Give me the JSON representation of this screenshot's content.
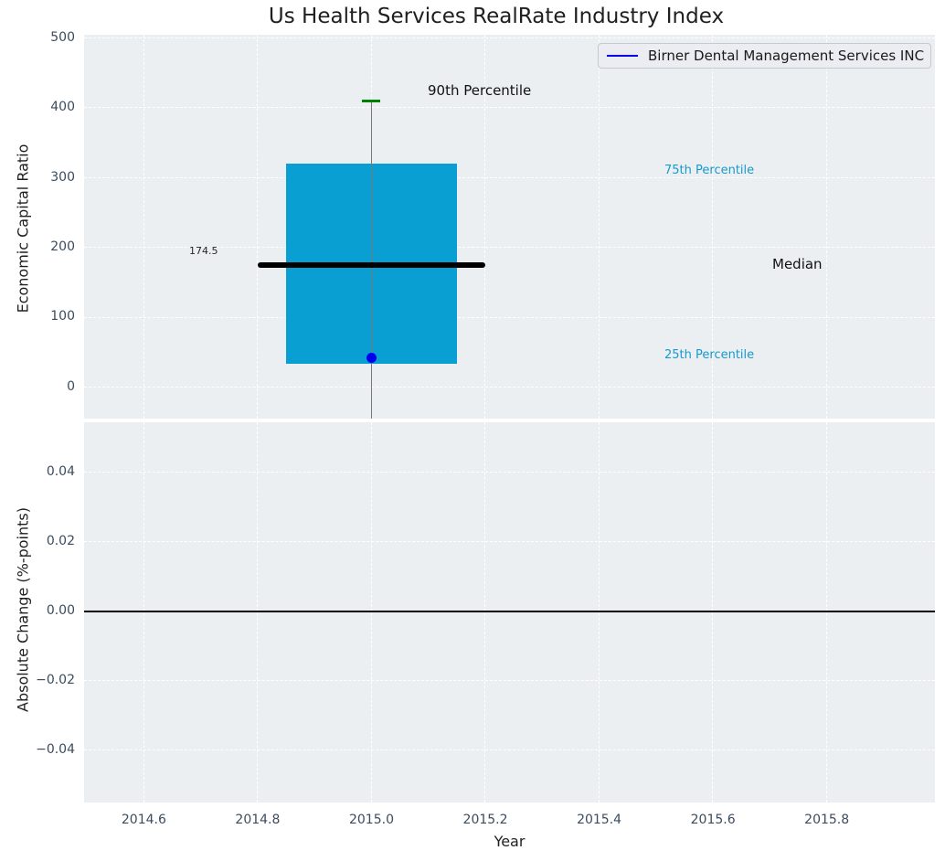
{
  "title": "Us Health Services RealRate Industry Index",
  "legend": {
    "label": "Birner Dental Management Services INC"
  },
  "colors": {
    "box_fill": "#0a9fd2",
    "percentile_label_text": "#1899cc",
    "whisker_cap_green": "#008000",
    "company_marker_blue": "#0000ee",
    "median_line": "#000000",
    "axes_background": "#eceff1",
    "grid": "#ffffff",
    "tick_label": "#3b4c5e",
    "title_text": "#1f1f1f"
  },
  "chart_data": [
    {
      "type": "box",
      "title": "Us Health Services RealRate Industry Index",
      "ylabel": "Economic Capital Ratio",
      "xlim": [
        2014.495,
        2015.99
      ],
      "ylim": [
        -45,
        505
      ],
      "grid": true,
      "shared_x_with_bottom": true,
      "yticks": [
        {
          "v": 0,
          "label": "0"
        },
        {
          "v": 100,
          "label": "100"
        },
        {
          "v": 200,
          "label": "200"
        },
        {
          "v": 300,
          "label": "300"
        },
        {
          "v": 400,
          "label": "400"
        },
        {
          "v": 500,
          "label": "500"
        }
      ],
      "box": {
        "x": 2015.0,
        "q1": 33,
        "median": 174.5,
        "q3": 320,
        "p90": 410,
        "box_half_width": 0.15,
        "median_half_width": 0.2,
        "whisker_low_clipped_below_axis": true
      },
      "company_point": {
        "name": "Birner Dental Management Services INC",
        "x": 2015.0,
        "y": 42
      },
      "annotations": {
        "p90": "90th Percentile",
        "p75": "75th Percentile",
        "median": "Median",
        "p25": "25th Percentile",
        "median_value": "174.5"
      },
      "legend": {
        "position": "upper right",
        "entries": [
          {
            "label": "Birner Dental Management Services INC",
            "color": "#0000ee",
            "style": "line"
          }
        ]
      }
    },
    {
      "type": "line",
      "ylabel": "Absolute Change (%-points)",
      "xlabel": "Year",
      "xlim": [
        2014.495,
        2015.99
      ],
      "ylim": [
        -0.055,
        0.0545
      ],
      "grid": true,
      "zero_line": true,
      "series": [],
      "xticks": [
        {
          "v": 2014.6,
          "label": "2014.6"
        },
        {
          "v": 2014.8,
          "label": "2014.8"
        },
        {
          "v": 2015.0,
          "label": "2015.0"
        },
        {
          "v": 2015.2,
          "label": "2015.2"
        },
        {
          "v": 2015.4,
          "label": "2015.4"
        },
        {
          "v": 2015.6,
          "label": "2015.6"
        },
        {
          "v": 2015.8,
          "label": "2015.8"
        }
      ],
      "yticks": [
        {
          "v": 0.04,
          "label": "0.04"
        },
        {
          "v": 0.02,
          "label": "0.02"
        },
        {
          "v": 0.0,
          "label": "0.00"
        },
        {
          "v": -0.02,
          "label": "−0.02"
        },
        {
          "v": -0.04,
          "label": "−0.04"
        }
      ]
    }
  ]
}
